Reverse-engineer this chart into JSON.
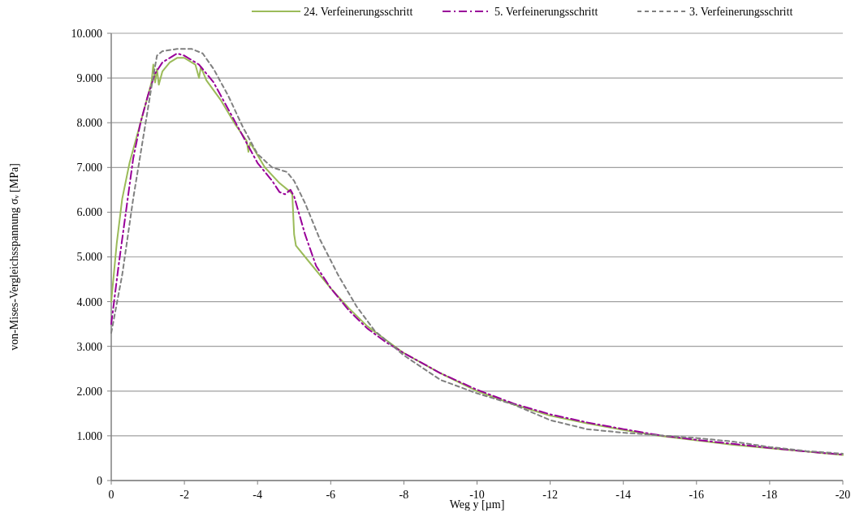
{
  "chart_data": {
    "type": "line",
    "xlabel": "Weg y [µm]",
    "ylabel": "von-Mises-Vergleichsspannung σᵥ [MPa]",
    "xlim": [
      0,
      -20
    ],
    "ylim": [
      0,
      10000
    ],
    "xticks": [
      0,
      -2,
      -4,
      -6,
      -8,
      -10,
      -12,
      -14,
      -16,
      -18,
      -20
    ],
    "yticks": [
      {
        "value": 0,
        "label": "0"
      },
      {
        "value": 1000,
        "label": "1.000"
      },
      {
        "value": 2000,
        "label": "2.000"
      },
      {
        "value": 3000,
        "label": "3.000"
      },
      {
        "value": 4000,
        "label": "4.000"
      },
      {
        "value": 5000,
        "label": "5.000"
      },
      {
        "value": 6000,
        "label": "6.000"
      },
      {
        "value": 7000,
        "label": "7.000"
      },
      {
        "value": 8000,
        "label": "8.000"
      },
      {
        "value": 9000,
        "label": "9.000"
      },
      {
        "value": 10000,
        "label": "10.000"
      }
    ],
    "grid": "y",
    "legend": "top",
    "marker": "none",
    "series": [
      {
        "name": "24. Verfeinerungsschritt",
        "color": "#9bbb59",
        "line_style": "solid",
        "x": [
          0,
          -0.15,
          -0.3,
          -0.5,
          -0.7,
          -0.9,
          -1.1,
          -1.15,
          -1.2,
          -1.25,
          -1.3,
          -1.4,
          -1.6,
          -1.8,
          -2.0,
          -2.2,
          -2.3,
          -2.4,
          -2.45,
          -2.6,
          -3.0,
          -3.4,
          -3.7,
          -3.75,
          -3.8,
          -4.2,
          -4.6,
          -4.9,
          -4.95,
          -5.0,
          -5.05,
          -5.3,
          -6.0,
          -6.5,
          -7,
          -7.5,
          -8,
          -9,
          -10,
          -11,
          -12,
          -13,
          -14,
          -15,
          -16,
          -17,
          -18,
          -19,
          -20
        ],
        "values": [
          4000,
          5300,
          6300,
          7100,
          7700,
          8300,
          8900,
          9300,
          8900,
          9200,
          8850,
          9150,
          9350,
          9450,
          9450,
          9350,
          9300,
          9000,
          9250,
          8950,
          8500,
          7950,
          7600,
          7350,
          7550,
          7000,
          6650,
          6450,
          6400,
          5500,
          5250,
          5000,
          4300,
          3850,
          3450,
          3150,
          2850,
          2400,
          2000,
          1700,
          1450,
          1280,
          1130,
          1000,
          900,
          800,
          720,
          650,
          570
        ]
      },
      {
        "name": "5. Verfeinerungsschritt",
        "color": "#990099",
        "line_style": "dashdot",
        "x": [
          0,
          -0.2,
          -0.4,
          -0.6,
          -0.8,
          -1.0,
          -1.2,
          -1.4,
          -1.6,
          -1.8,
          -2.0,
          -2.4,
          -2.8,
          -3.2,
          -3.6,
          -4.0,
          -4.4,
          -4.6,
          -4.75,
          -4.9,
          -5.0,
          -5.3,
          -5.6,
          -6.0,
          -6.5,
          -7,
          -7.5,
          -8,
          -9,
          -10,
          -11,
          -12,
          -13,
          -14,
          -15,
          -16,
          -17,
          -18,
          -19,
          -20
        ],
        "values": [
          3500,
          4800,
          6000,
          7200,
          8000,
          8600,
          9100,
          9350,
          9450,
          9550,
          9500,
          9300,
          8900,
          8300,
          7700,
          7100,
          6700,
          6450,
          6400,
          6500,
          6350,
          5500,
          4800,
          4300,
          3800,
          3400,
          3100,
          2850,
          2400,
          2030,
          1720,
          1480,
          1300,
          1150,
          1010,
          910,
          820,
          730,
          650,
          580
        ]
      },
      {
        "name": "3. Verfeinerungsschritt",
        "color": "#808080",
        "line_style": "dashed",
        "x": [
          0,
          -0.3,
          -0.6,
          -0.9,
          -1.1,
          -1.25,
          -1.4,
          -1.8,
          -2.2,
          -2.5,
          -2.8,
          -3.2,
          -3.6,
          -4.0,
          -4.4,
          -4.8,
          -5.0,
          -5.3,
          -5.7,
          -6.2,
          -6.7,
          -7.2,
          -8,
          -9,
          -10,
          -11,
          -12,
          -13,
          -14,
          -15,
          -16,
          -17,
          -18,
          -19,
          -20
        ],
        "values": [
          3300,
          4600,
          6300,
          7800,
          8800,
          9500,
          9600,
          9650,
          9650,
          9550,
          9200,
          8600,
          7900,
          7300,
          7000,
          6900,
          6700,
          6200,
          5400,
          4600,
          3900,
          3350,
          2800,
          2250,
          1950,
          1700,
          1350,
          1150,
          1070,
          1010,
          950,
          870,
          750,
          660,
          600
        ]
      }
    ]
  }
}
